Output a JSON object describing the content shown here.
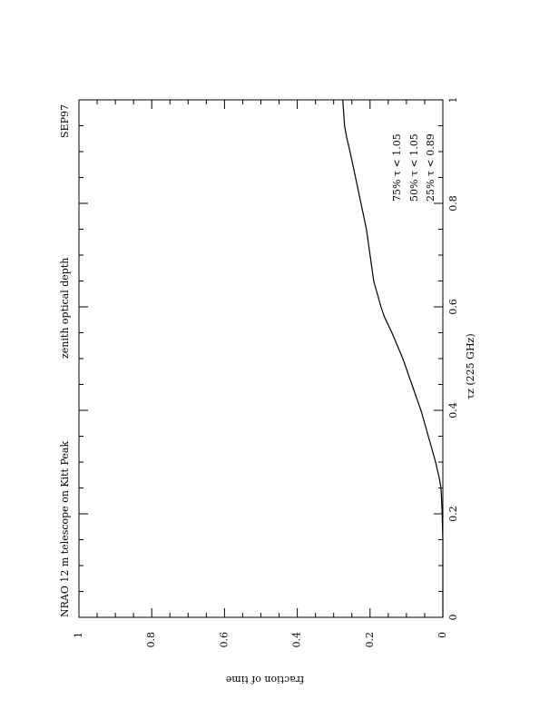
{
  "chart_data": {
    "type": "line",
    "orientation": "rotated 90 degrees (landscape plot on portrait page)",
    "title_left": "NRAO 12 m telescope on Kitt Peak",
    "title_center": "zenith optical depth",
    "title_right": "SEP97",
    "xlabel": "τz (225 GHz)",
    "ylabel": "fraction of time",
    "xlim": [
      0,
      1
    ],
    "ylim": [
      0,
      1
    ],
    "xticks": [
      "0",
      "0.2",
      "0.4",
      "0.6",
      "0.8",
      "1"
    ],
    "yticks": [
      "0",
      "0.2",
      "0.4",
      "0.6",
      "0.8",
      "1"
    ],
    "grid": false,
    "annotations": [
      "75% τ < 1.05",
      "50% τ < 1.05",
      "25% τ < 0.89"
    ],
    "series": [
      {
        "x": [
          0.0,
          0.05,
          0.1,
          0.15,
          0.2,
          0.22,
          0.25,
          0.27,
          0.3,
          0.35,
          0.4,
          0.45,
          0.5,
          0.55,
          0.58,
          0.6,
          0.65,
          0.7,
          0.75,
          0.8,
          0.85,
          0.9,
          0.93,
          0.95,
          1.0
        ],
        "y": [
          0.0,
          0.0,
          0.0,
          0.0,
          0.002,
          0.003,
          0.005,
          0.01,
          0.02,
          0.04,
          0.06,
          0.085,
          0.11,
          0.14,
          0.16,
          0.17,
          0.19,
          0.2,
          0.21,
          0.225,
          0.24,
          0.255,
          0.265,
          0.27,
          0.275
        ]
      }
    ]
  }
}
